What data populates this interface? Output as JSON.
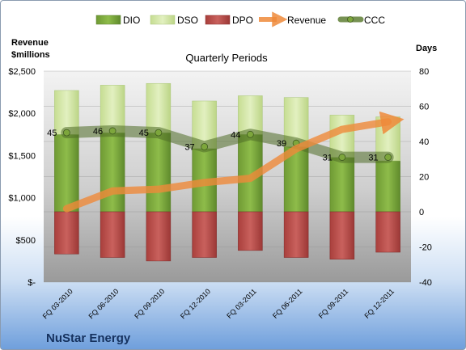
{
  "chart_data": {
    "type": "bar",
    "title": "Quarterly Periods",
    "company": "NuStar Energy",
    "left_axis": {
      "title_lines": [
        "Revenue",
        "$millions"
      ],
      "range": [
        0,
        2500
      ],
      "ticks": [
        0,
        500,
        1000,
        1500,
        2000,
        2500
      ],
      "tick_labels": [
        "$-",
        "$500",
        "$1,000",
        "$1,500",
        "$2,000",
        "$2,500"
      ]
    },
    "right_axis": {
      "title": "Days",
      "range": [
        -40,
        80
      ],
      "ticks": [
        -40,
        -20,
        0,
        20,
        40,
        60,
        80
      ],
      "tick_labels": [
        "-40",
        "-20",
        "0",
        "20",
        "40",
        "60",
        "80"
      ]
    },
    "categories": [
      "FQ 03-2010",
      "FQ 06-2010",
      "FQ 09-2010",
      "FQ 12-2010",
      "FQ 03-2011",
      "FQ 06-2011",
      "FQ 09-2011",
      "FQ 12-2011"
    ],
    "legend": [
      "DIO",
      "DSO",
      "DPO",
      "Revenue",
      "CCC"
    ],
    "series": [
      {
        "name": "DIO",
        "axis": "days",
        "values": [
          44,
          45,
          45,
          36,
          44,
          37,
          31,
          29
        ],
        "color": "#76a33a"
      },
      {
        "name": "DSO",
        "axis": "days",
        "values": [
          25,
          27,
          28,
          27,
          22,
          28,
          24,
          25
        ],
        "color": "#d4e8a6"
      },
      {
        "name": "DPO",
        "axis": "days",
        "values": [
          -24,
          -26,
          -28,
          -26,
          -22,
          -26,
          -27,
          -23
        ],
        "color": "#c0504d"
      },
      {
        "name": "Revenue",
        "axis": "revenue",
        "values": [
          870,
          1080,
          1100,
          1180,
          1230,
          1580,
          1810,
          1900
        ],
        "color": "#e8873a"
      },
      {
        "name": "CCC",
        "axis": "days",
        "values": [
          45,
          46,
          45,
          37,
          44,
          39,
          31,
          31
        ],
        "labels": [
          "45",
          "46",
          "45",
          "37",
          "44",
          "39",
          "31",
          "31"
        ],
        "color": "#5f7f35"
      }
    ],
    "legend_placement": "top"
  }
}
